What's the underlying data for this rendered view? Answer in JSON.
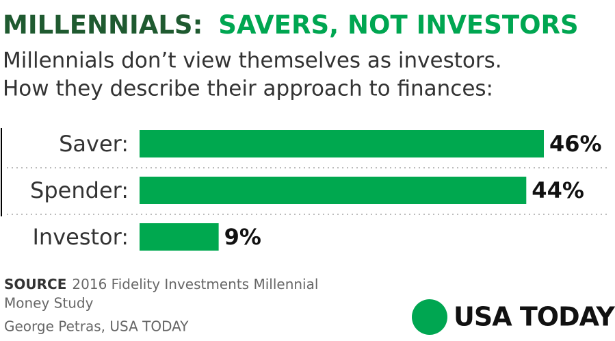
{
  "chart_data": {
    "type": "bar",
    "title": "MILLENNIALS:",
    "title_highlight": "SAVERS, NOT INVESTORS",
    "subtitle": [
      "Millennials don’t view themselves as investors.",
      "How they describe their approach to finances:"
    ],
    "categories": [
      "Saver:",
      "Spender:",
      "Investor:"
    ],
    "values": [
      46,
      44,
      9
    ],
    "value_labels": [
      "46%",
      "44%",
      "9%"
    ],
    "color": "#00a84f",
    "source_label": "SOURCE",
    "source": [
      "2016 Fidelity Investments Millennial",
      "Money Study"
    ],
    "credit": "George Petras, USA TODAY",
    "logo": "USA TODAY"
  }
}
